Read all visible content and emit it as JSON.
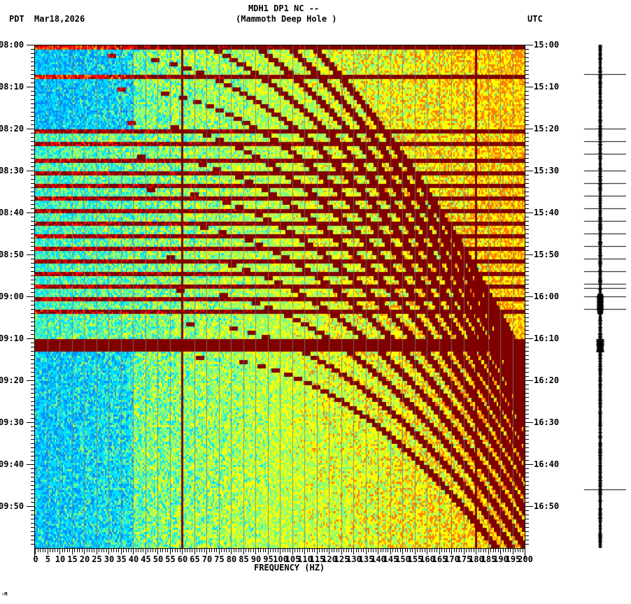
{
  "header": {
    "station": "MDH1 DP1 NC --",
    "site": "(Mammoth Deep Hole )",
    "left_tz": "PDT",
    "date": "Mar18,2026",
    "right_tz": "UTC"
  },
  "footer_mark": "-M",
  "chart_data": {
    "type": "heatmap",
    "title": "MDH1 DP1 NC -- (Mammoth Deep Hole )",
    "xlabel": "FREQUENCY (HZ)",
    "ylabel_left": "PDT",
    "ylabel_right": "UTC",
    "xlim": [
      0,
      200
    ],
    "x_ticks": [
      0,
      5,
      10,
      15,
      20,
      25,
      30,
      35,
      40,
      45,
      50,
      55,
      60,
      65,
      70,
      75,
      80,
      85,
      90,
      95,
      100,
      105,
      110,
      115,
      120,
      125,
      130,
      135,
      140,
      145,
      150,
      155,
      160,
      165,
      170,
      175,
      180,
      185,
      190,
      195,
      200
    ],
    "y_ticks_left": [
      "08:00",
      "08:10",
      "08:20",
      "08:30",
      "08:40",
      "08:50",
      "09:00",
      "09:10",
      "09:20",
      "09:30",
      "09:40",
      "09:50"
    ],
    "y_ticks_right": [
      "15:00",
      "15:10",
      "15:20",
      "15:30",
      "15:40",
      "15:50",
      "16:00",
      "16:10",
      "16:20",
      "16:30",
      "16:40",
      "16:50"
    ],
    "time_range_minutes": 120,
    "minor_tick_interval_minutes": 1,
    "colormap": [
      "#0030ff",
      "#0090ff",
      "#00e0ff",
      "#80ff80",
      "#ffff00",
      "#ff8000",
      "#ff0000",
      "#800000"
    ],
    "persistent_lines_hz": [
      60,
      180
    ],
    "broadband_bursts_minutes": [
      0,
      7,
      20,
      23,
      27,
      30,
      33,
      36,
      39,
      42,
      45,
      48,
      51,
      54,
      57,
      60,
      63,
      70,
      71
    ],
    "annotations": "Repeated curved chirp tracks sweeping from low to high frequency; strong broadband band at ~09:10 PDT"
  },
  "trace": {
    "event_marks_minutes": [
      7,
      20,
      23,
      26,
      30,
      33,
      36,
      39,
      42,
      45,
      48,
      51,
      54,
      57,
      58,
      60,
      63,
      106
    ]
  }
}
